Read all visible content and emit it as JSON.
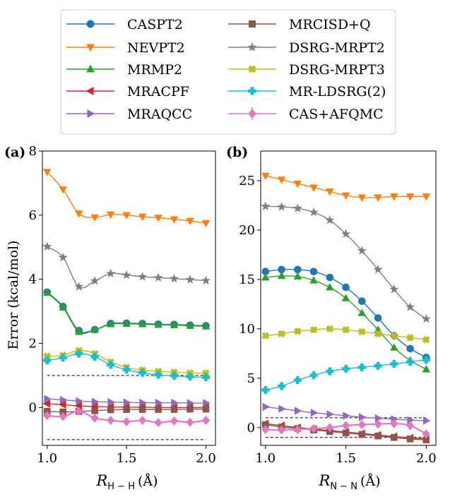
{
  "legend": [
    {
      "name": "CASPT2",
      "color": "#1f77b4",
      "marker": "circle"
    },
    {
      "name": "MRCISD+Q",
      "color": "#8c564b",
      "marker": "square"
    },
    {
      "name": "NEVPT2",
      "color": "#ff7f0e",
      "marker": "triangle-down"
    },
    {
      "name": "DSRG-MRPT2",
      "color": "#7f7f7f",
      "marker": "star"
    },
    {
      "name": "MRMP2",
      "color": "#2ca02c",
      "marker": "triangle-up"
    },
    {
      "name": "DSRG-MRPT3",
      "color": "#bcbd22",
      "marker": "x"
    },
    {
      "name": "MRACPF",
      "color": "#d62728",
      "marker": "triangle-left"
    },
    {
      "name": "MR-LDSRG(2)",
      "color": "#17becf",
      "marker": "plus"
    },
    {
      "name": "MRAQCC",
      "color": "#9467bd",
      "marker": "triangle-right"
    },
    {
      "name": "CAS+AFQMC",
      "color": "#e377c2",
      "marker": "diamond"
    }
  ],
  "chart_data": [
    {
      "type": "line",
      "panel_label": "(a)",
      "xlabel_main": "R",
      "xlabel_sub": "H − H",
      "xlabel_unit": "(Å)",
      "ylabel": "Error (kcal/mol)",
      "xlim": [
        0.97,
        2.06
      ],
      "ylim": [
        -1.18,
        8.0
      ],
      "xticks": [
        1.0,
        1.5,
        2.0
      ],
      "xtick_labels": [
        "1.0",
        "1.5",
        "2.0"
      ],
      "yticks": [
        0,
        2,
        4,
        6,
        8
      ],
      "ytick_labels": [
        "0",
        "2",
        "4",
        "6",
        "8"
      ],
      "chem_accuracy_band": [
        -1,
        1
      ],
      "x": [
        1.0,
        1.1,
        1.2,
        1.3,
        1.4,
        1.5,
        1.6,
        1.7,
        1.8,
        1.9,
        2.0
      ],
      "series": [
        {
          "name": "NEVPT2",
          "values": [
            7.35,
            6.8,
            6.05,
            5.93,
            6.02,
            6.0,
            5.95,
            5.92,
            5.87,
            5.82,
            5.75
          ]
        },
        {
          "name": "DSRG-MRPT2",
          "values": [
            5.02,
            4.68,
            3.77,
            3.95,
            4.18,
            4.13,
            4.08,
            4.05,
            4.02,
            3.99,
            3.96
          ]
        },
        {
          "name": "CASPT2",
          "values": [
            3.6,
            3.15,
            2.4,
            2.43,
            2.62,
            2.63,
            2.62,
            2.6,
            2.59,
            2.57,
            2.55
          ]
        },
        {
          "name": "MRMP2",
          "values": [
            3.58,
            3.12,
            2.36,
            2.42,
            2.6,
            2.61,
            2.6,
            2.58,
            2.57,
            2.55,
            2.53
          ]
        },
        {
          "name": "DSRG-MRPT3",
          "values": [
            1.6,
            1.63,
            1.78,
            1.68,
            1.42,
            1.25,
            1.17,
            1.13,
            1.1,
            1.08,
            1.07
          ]
        },
        {
          "name": "MR-LDSRG(2)",
          "values": [
            1.47,
            1.55,
            1.68,
            1.58,
            1.33,
            1.18,
            1.08,
            1.02,
            0.99,
            0.96,
            0.94
          ]
        },
        {
          "name": "MRAQCC",
          "values": [
            0.27,
            0.24,
            0.2,
            0.18,
            0.17,
            0.16,
            0.15,
            0.15,
            0.15,
            0.14,
            0.14
          ]
        },
        {
          "name": "MRACPF",
          "values": [
            0.12,
            0.09,
            0.05,
            0.03,
            0.02,
            0.01,
            0.01,
            0.0,
            0.0,
            0.0,
            0.0
          ]
        },
        {
          "name": "MRCISD+Q",
          "values": [
            -0.12,
            -0.14,
            -0.12,
            -0.1,
            -0.07,
            -0.06,
            -0.06,
            -0.06,
            -0.06,
            -0.05,
            -0.05
          ]
        },
        {
          "name": "CAS+AFQMC",
          "values": [
            -0.25,
            -0.28,
            -0.12,
            -0.33,
            -0.4,
            -0.44,
            -0.4,
            -0.47,
            -0.42,
            -0.46,
            -0.4
          ]
        }
      ]
    },
    {
      "type": "line",
      "panel_label": "(b)",
      "xlabel_main": "R",
      "xlabel_sub": "N − N",
      "xlabel_unit": "(Å)",
      "ylabel": "",
      "xlim": [
        0.97,
        2.06
      ],
      "ylim": [
        -1.8,
        28.0
      ],
      "xticks": [
        1.0,
        1.5,
        2.0
      ],
      "xtick_labels": [
        "1.0",
        "1.5",
        "2.0"
      ],
      "yticks": [
        0,
        5,
        10,
        15,
        20,
        25
      ],
      "ytick_labels": [
        "0",
        "5",
        "10",
        "15",
        "20",
        "25"
      ],
      "chem_accuracy_band": [
        -1,
        1
      ],
      "x": [
        1.0,
        1.1,
        1.2,
        1.3,
        1.4,
        1.5,
        1.6,
        1.7,
        1.8,
        1.9,
        2.0
      ],
      "series": [
        {
          "name": "NEVPT2",
          "values": [
            25.5,
            25.1,
            24.7,
            24.3,
            23.9,
            23.5,
            23.3,
            23.3,
            23.4,
            23.4,
            23.4
          ]
        },
        {
          "name": "DSRG-MRPT2",
          "values": [
            22.4,
            22.35,
            22.2,
            21.8,
            21.0,
            19.6,
            17.9,
            16.0,
            14.0,
            12.2,
            11.0
          ]
        },
        {
          "name": "CASPT2",
          "values": [
            15.8,
            16.0,
            16.0,
            15.8,
            15.2,
            14.2,
            12.8,
            11.1,
            9.3,
            8.0,
            7.1
          ]
        },
        {
          "name": "MRMP2",
          "values": [
            15.2,
            15.35,
            15.3,
            14.9,
            14.2,
            13.1,
            11.6,
            9.9,
            8.1,
            6.8,
            5.9
          ]
        },
        {
          "name": "DSRG-MRPT3",
          "values": [
            9.3,
            9.5,
            9.75,
            9.9,
            10.0,
            9.9,
            9.7,
            9.5,
            9.3,
            9.1,
            8.9
          ]
        },
        {
          "name": "MR-LDSRG(2)",
          "values": [
            3.8,
            4.2,
            4.8,
            5.3,
            5.7,
            5.95,
            6.1,
            6.25,
            6.45,
            6.65,
            6.85
          ]
        },
        {
          "name": "MRAQCC",
          "values": [
            2.1,
            1.9,
            1.7,
            1.5,
            1.35,
            1.2,
            1.05,
            0.95,
            0.85,
            0.75,
            0.7
          ]
        },
        {
          "name": "MRACPF",
          "values": [
            0.4,
            0.2,
            0.0,
            -0.15,
            -0.3,
            -0.45,
            -0.6,
            -0.75,
            -0.9,
            -1.05,
            -1.15
          ]
        },
        {
          "name": "MRCISD+Q",
          "values": [
            0.3,
            0.05,
            -0.1,
            -0.25,
            -0.4,
            -0.55,
            -0.7,
            -0.85,
            -1.0,
            -1.15,
            -1.25
          ]
        },
        {
          "name": "CAS+AFQMC",
          "values": [
            -0.2,
            -0.25,
            -0.2,
            -0.1,
            0.0,
            0.2,
            0.3,
            0.35,
            0.4,
            0.2,
            -0.65
          ]
        }
      ]
    }
  ]
}
